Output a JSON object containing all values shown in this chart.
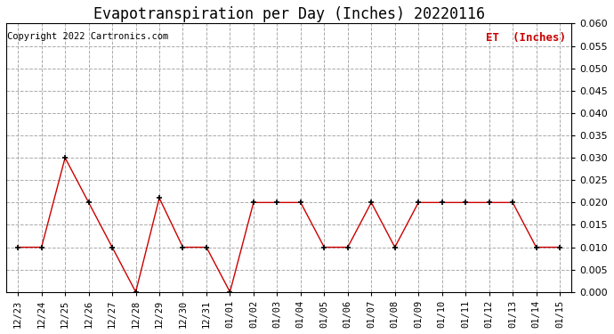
{
  "title": "Evapotranspiration per Day (Inches) 20220116",
  "copyright": "Copyright 2022 Cartronics.com",
  "legend_label": "ET  (Inches)",
  "x_labels": [
    "12/23",
    "12/24",
    "12/25",
    "12/26",
    "12/27",
    "12/28",
    "12/29",
    "12/30",
    "12/31",
    "01/01",
    "01/02",
    "01/03",
    "01/04",
    "01/05",
    "01/06",
    "01/07",
    "01/08",
    "01/09",
    "01/10",
    "01/11",
    "01/12",
    "01/13",
    "01/14",
    "01/15"
  ],
  "y_values": [
    0.01,
    0.01,
    0.03,
    0.02,
    0.01,
    0.0,
    0.021,
    0.01,
    0.01,
    0.0,
    0.02,
    0.02,
    0.02,
    0.01,
    0.01,
    0.02,
    0.01,
    0.02,
    0.02,
    0.02,
    0.02,
    0.02,
    0.01,
    0.01
  ],
  "line_color": "#cc0000",
  "marker_color": "#000000",
  "ylim": [
    0.0,
    0.06
  ],
  "yticks": [
    0.0,
    0.005,
    0.01,
    0.015,
    0.02,
    0.025,
    0.03,
    0.035,
    0.04,
    0.045,
    0.05,
    0.055,
    0.06
  ],
  "background_color": "#ffffff",
  "grid_color": "#aaaaaa",
  "title_fontsize": 12,
  "copyright_fontsize": 7.5,
  "legend_fontsize": 9,
  "tick_fontsize": 7.5,
  "ytick_fontsize": 8
}
